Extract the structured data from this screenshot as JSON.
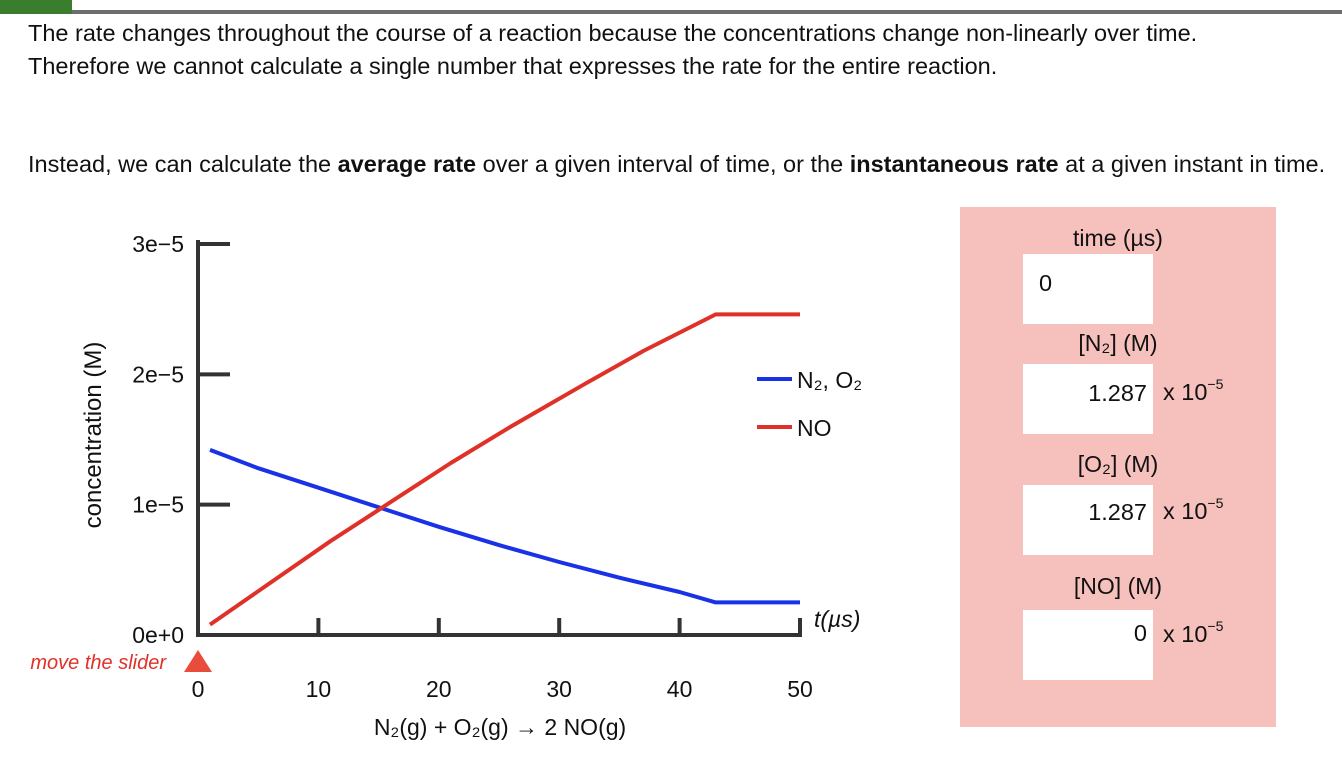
{
  "intro": {
    "p1": "The rate changes throughout the course of a reaction because the concentrations change non-linearly over time. Therefore we cannot calculate a single number that expresses the rate for the entire reaction.",
    "p2_pre": "Instead, we can calculate the ",
    "p2_bold1": "average rate",
    "p2_mid": " over a given interval of time, or the ",
    "p2_bold2": "instantaneous rate",
    "p2_post": " at a given instant in time."
  },
  "slider": {
    "label": "move the slider",
    "value": 0
  },
  "equation": "N₂(g) + O₂(g) → 2 NO(g)",
  "panel": {
    "time_label": "time (µs)",
    "time_value": "0",
    "n2_label": "[N₂] (M)",
    "n2_value": "1.287",
    "o2_label": "[O₂] (M)",
    "o2_value": "1.287",
    "no_label": "[NO] (M)",
    "no_value": "0",
    "exp_prefix": "x 10",
    "exp_power": "−5"
  },
  "colors": {
    "n2": "#1a32e6",
    "no": "#e03128",
    "panel": "#f6c0bd",
    "slider": "#e84c3d"
  },
  "chart_data": {
    "type": "line",
    "xlabel": "t(µs)",
    "ylabel": "concentration (M)",
    "xlim": [
      0,
      50
    ],
    "ylim": [
      0,
      3e-05
    ],
    "xticks": [
      "0",
      "10",
      "20",
      "30",
      "40",
      "50"
    ],
    "yticks": [
      "0e+0",
      "1e−5",
      "2e−5",
      "3e−5"
    ],
    "legend": [
      "N₂, O₂",
      "NO"
    ],
    "series": [
      {
        "name": "N₂, O₂",
        "x": [
          1,
          5,
          10,
          15,
          20,
          25,
          30,
          35,
          40,
          43,
          50
        ],
        "y": [
          1.42e-05,
          1.28e-05,
          1.13e-05,
          9.8e-06,
          8.3e-06,
          6.9e-06,
          5.6e-06,
          4.4e-06,
          3.3e-06,
          2.5e-06,
          2.5e-06
        ]
      },
      {
        "name": "NO",
        "x": [
          1,
          6,
          11,
          16,
          21,
          26,
          32,
          37,
          43,
          50
        ],
        "y": [
          8e-07,
          4e-06,
          7.2e-06,
          1.02e-05,
          1.32e-05,
          1.6e-05,
          1.92e-05,
          2.18e-05,
          2.46e-05,
          2.46e-05
        ]
      }
    ]
  }
}
